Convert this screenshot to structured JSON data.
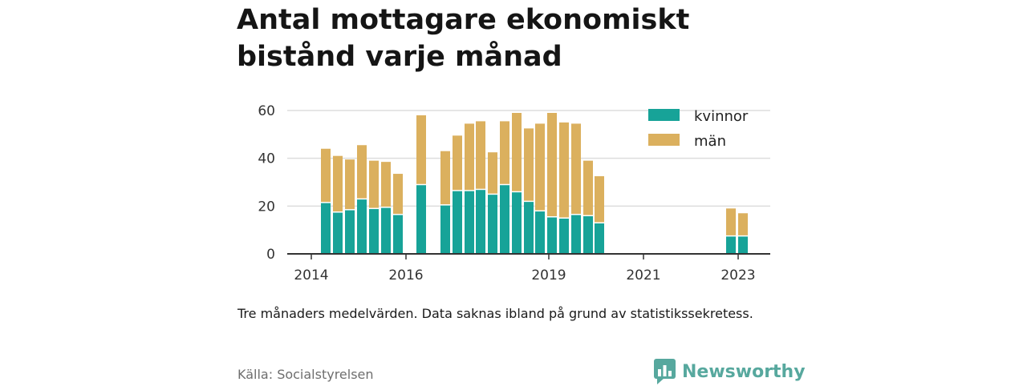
{
  "title": "Antal mottagare ekonomiskt bistånd varje månad",
  "note": "Tre månaders medelvärden. Data saknas ibland på grund av statistikssekretess.",
  "source": "Källa: Socialstyrelsen",
  "brand": "Newsworthy",
  "colors": {
    "kvinnor": "#17a398",
    "man": "#dbb05e",
    "grid": "#dddddd",
    "axis": "#333333",
    "brand": "#57a89e"
  },
  "chart_data": {
    "type": "bar",
    "stacked": true,
    "x_ticks": [
      "2014",
      "2016",
      "2019",
      "2021",
      "2023"
    ],
    "y_ticks": [
      "0",
      "20",
      "40",
      "60"
    ],
    "ylim": [
      0,
      60
    ],
    "grid": true,
    "legend_position": "top-right",
    "series": [
      {
        "name": "kvinnor",
        "values": [
          21.5,
          17.5,
          18.5,
          23,
          19,
          19.5,
          16.5,
          29,
          20.5,
          26.5,
          26.5,
          27,
          25,
          29,
          26,
          22,
          18,
          15.5,
          15,
          16.5,
          16,
          13,
          7.5,
          7.5
        ]
      },
      {
        "name": "män",
        "values": [
          22.5,
          23.5,
          21,
          22.5,
          20,
          19,
          17,
          29,
          22.5,
          23,
          28,
          28.5,
          17.5,
          26.5,
          33,
          30.5,
          36.5,
          43.5,
          40,
          38,
          23,
          19.5,
          11.5,
          9.5
        ]
      }
    ]
  }
}
